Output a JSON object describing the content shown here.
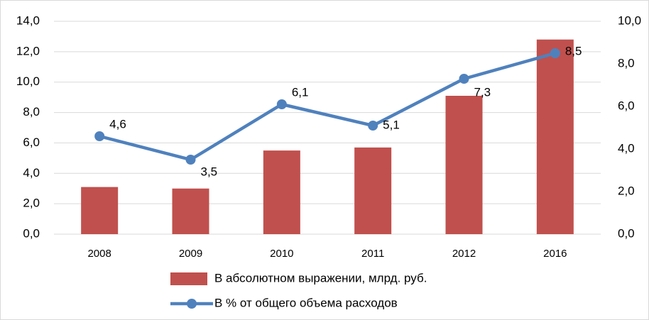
{
  "chart_data": {
    "type": "bar",
    "categories": [
      "2008",
      "2009",
      "2010",
      "2011",
      "2012",
      "2016"
    ],
    "series": [
      {
        "name": "В абсолютном выражении, млрд. руб.",
        "type": "bar",
        "color": "#c0504d",
        "values": [
          3.1,
          3.0,
          5.5,
          5.7,
          9.1,
          12.8
        ]
      },
      {
        "name": "В % от общего объема расходов",
        "type": "line",
        "axis": "y2",
        "color": "#4f81bd",
        "values": [
          4.6,
          3.5,
          6.1,
          5.1,
          7.3,
          8.5
        ],
        "value_labels": [
          "4,6",
          "3,5",
          "6,1",
          "5,1",
          "7,3",
          "8,5"
        ]
      }
    ],
    "ylim": [
      0,
      14
    ],
    "yticks": [
      {
        "value": 0,
        "label": "0,0"
      },
      {
        "value": 2,
        "label": "2,0"
      },
      {
        "value": 4,
        "label": "4,0"
      },
      {
        "value": 6,
        "label": "6,0"
      },
      {
        "value": 8,
        "label": "8,0"
      },
      {
        "value": 10,
        "label": "10,0"
      },
      {
        "value": 12,
        "label": "12,0"
      },
      {
        "value": 14,
        "label": "14,0"
      }
    ],
    "y2lim": [
      0,
      10
    ],
    "y2ticks": [
      {
        "value": 0,
        "label": "0,0"
      },
      {
        "value": 2,
        "label": "2,0"
      },
      {
        "value": 4,
        "label": "4,0"
      },
      {
        "value": 6,
        "label": "6,0"
      },
      {
        "value": 8,
        "label": "8,0"
      },
      {
        "value": 10,
        "label": "10,0"
      }
    ],
    "grid": true,
    "legend": "bottom"
  }
}
